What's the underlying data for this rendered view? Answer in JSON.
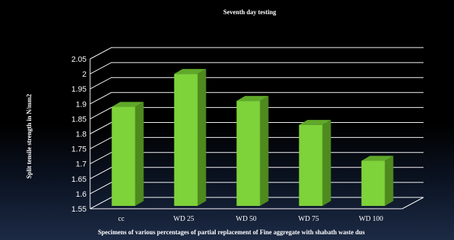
{
  "chart_data": {
    "type": "bar",
    "style": "3d-column",
    "title": "Seventh day testing",
    "xlabel": "Specimens of various percentages of partial replacement of  Fine aggregate with shabath waste dus",
    "ylabel": "Split tensile strength in N/mm2",
    "categories": [
      "cc",
      "WD 25",
      "WD 50",
      "WD 75",
      "WD 100"
    ],
    "values": [
      1.89,
      2.0,
      1.91,
      1.83,
      1.71
    ],
    "ylim": [
      1.55,
      2.05
    ],
    "yticks": [
      "1.55",
      "1.6",
      "1.65",
      "1.7",
      "1.75",
      "1.8",
      "1.85",
      "1.9",
      "1.95",
      "2",
      "2.05"
    ],
    "grid": true,
    "legend": "none",
    "colors": {
      "background": "#000000",
      "bar_front": "#7ed23a",
      "bar_side": "#4e8a1e",
      "bar_top": "#5fa82a",
      "text": "#ffffff",
      "gridline": "#ffffff"
    }
  }
}
